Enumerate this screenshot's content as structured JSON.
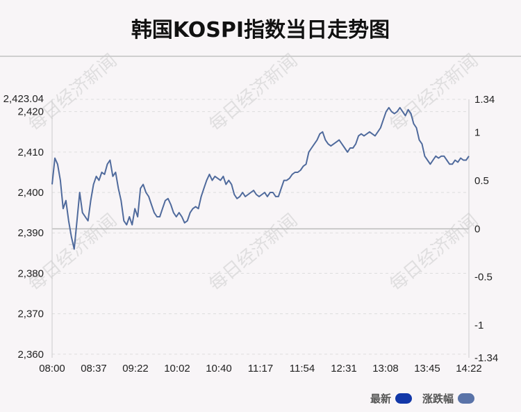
{
  "title": "韩国KOSPI指数当日走势图",
  "watermark": "每日经济新闻",
  "legend": {
    "latest": {
      "label": "最新",
      "color": "#1237a8"
    },
    "change": {
      "label": "涨跌幅",
      "color": "#5a73a8"
    }
  },
  "chart_data": {
    "type": "line",
    "title": "韩国KOSPI指数当日走势图",
    "x_tick_labels": [
      "08:00",
      "08:37",
      "09:22",
      "10:02",
      "10:40",
      "11:17",
      "11:54",
      "12:31",
      "13:08",
      "13:45",
      "14:22"
    ],
    "y_left": {
      "top_label": "2,423.04",
      "ticks": [
        2420,
        2410,
        2400,
        2390,
        2380,
        2370,
        2360
      ],
      "tick_labels": [
        "2,420",
        "2,410",
        "2,400",
        "2,390",
        "2,380",
        "2,370",
        "2,360"
      ],
      "ylim": [
        2359.1,
        2423.04
      ]
    },
    "y_right": {
      "tick_labels": [
        "1.34",
        "1",
        "0.5",
        "0",
        "-0.5",
        "-1",
        "-1.34"
      ],
      "tick_values": [
        1.34,
        1,
        0.5,
        0,
        -0.5,
        -1,
        -1.34
      ]
    },
    "prev_close": 2391.0,
    "line_color": "#4f6a9c",
    "series": [
      {
        "values": [
          2402,
          2408.5,
          2407,
          2403,
          2396,
          2398,
          2393,
          2389,
          2386,
          2393,
          2400,
          2395,
          2394,
          2393,
          2398,
          2402,
          2404,
          2403,
          2405,
          2404.5,
          2407,
          2408,
          2404,
          2405,
          2401,
          2398,
          2393,
          2392,
          2394,
          2392,
          2396,
          2394,
          2401,
          2402,
          2400,
          2399,
          2397,
          2395,
          2394,
          2394,
          2396,
          2398,
          2398.5,
          2397,
          2395,
          2394,
          2395,
          2394,
          2392.5,
          2393,
          2395,
          2396,
          2396.5,
          2396,
          2399,
          2401,
          2403,
          2404.5,
          2403,
          2404,
          2403.5,
          2403,
          2404,
          2402,
          2403,
          2402,
          2399.5,
          2398.5,
          2399,
          2400,
          2399,
          2399.5,
          2400,
          2400.5,
          2399.5,
          2399,
          2399.5,
          2400,
          2399,
          2400,
          2400,
          2399,
          2399,
          2401,
          2403,
          2403,
          2403.5,
          2404.5,
          2405,
          2405,
          2405.5,
          2406.5,
          2407,
          2410,
          2411,
          2412,
          2413,
          2414.5,
          2415,
          2413,
          2412,
          2411.5,
          2412,
          2412.5,
          2413,
          2412,
          2411,
          2410,
          2411,
          2411,
          2412,
          2414,
          2414.5,
          2414,
          2414.5,
          2415,
          2414.5,
          2414,
          2415,
          2416,
          2418,
          2420,
          2421,
          2420,
          2419.5,
          2420,
          2421,
          2420,
          2419,
          2420.5,
          2419.5,
          2417,
          2416,
          2413,
          2412,
          2409,
          2408,
          2407,
          2408,
          2409,
          2408.5,
          2409,
          2409,
          2408,
          2407,
          2407,
          2408,
          2407.5,
          2408.5,
          2408,
          2408,
          2409
        ]
      }
    ],
    "grid": true
  }
}
